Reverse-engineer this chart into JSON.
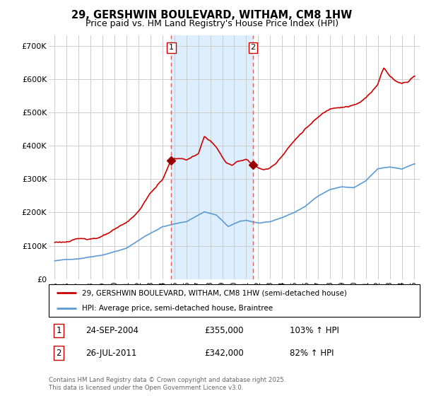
{
  "title": "29, GERSHWIN BOULEVARD, WITHAM, CM8 1HW",
  "subtitle": "Price paid vs. HM Land Registry's House Price Index (HPI)",
  "legend_line1": "29, GERSHWIN BOULEVARD, WITHAM, CM8 1HW (semi-detached house)",
  "legend_line2": "HPI: Average price, semi-detached house, Braintree",
  "footnote": "Contains HM Land Registry data © Crown copyright and database right 2025.\nThis data is licensed under the Open Government Licence v3.0.",
  "marker1_date": "24-SEP-2004",
  "marker1_price": 355000,
  "marker1_hpi": "103% ↑ HPI",
  "marker2_date": "26-JUL-2011",
  "marker2_price": 342000,
  "marker2_hpi": "82% ↑ HPI",
  "marker1_x": 2004.73,
  "marker2_x": 2011.57,
  "hpi_color": "#5b9bd5",
  "property_color": "#cc0000",
  "shade_color": "#ddeeff",
  "vline_color": "#e06060",
  "grid_color": "#cccccc",
  "dot_color": "#990000",
  "ylim": [
    0,
    730000
  ],
  "xlim": [
    1994.5,
    2025.5
  ],
  "yticks": [
    0,
    100000,
    200000,
    300000,
    400000,
    500000,
    600000,
    700000
  ],
  "ytick_labels": [
    "£0",
    "£100K",
    "£200K",
    "£300K",
    "£400K",
    "£500K",
    "£600K",
    "£700K"
  ],
  "xticks": [
    1995,
    1996,
    1997,
    1998,
    1999,
    2000,
    2001,
    2002,
    2003,
    2004,
    2005,
    2006,
    2007,
    2008,
    2009,
    2010,
    2011,
    2012,
    2013,
    2014,
    2015,
    2016,
    2017,
    2018,
    2019,
    2020,
    2021,
    2022,
    2023,
    2024,
    2025
  ]
}
